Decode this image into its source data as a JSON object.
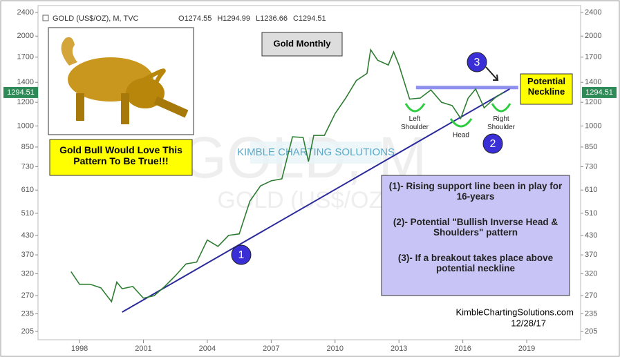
{
  "chart_data": {
    "type": "line",
    "header": {
      "symbol": "GOLD (US$/OZ), M, TVC",
      "ohlc": [
        {
          "label": "O",
          "value": 1274.55
        },
        {
          "label": "H",
          "value": 1294.99
        },
        {
          "label": "L",
          "value": 1236.66
        },
        {
          "label": "C",
          "value": 1294.51
        }
      ]
    },
    "title": "Gold Monthly",
    "watermark": "GOLD, M",
    "watermark_sub": "GOLD (US$/OZ)",
    "logo": "KIMBLE CHARTING SOLUTIONS",
    "callout": "Gold Bull Would Love This Pattern To Be True!!!",
    "neckline_label": "Potential Neckline",
    "pattern_labels": [
      "Left Shoulder",
      "Head",
      "Right Shoulder"
    ],
    "markers": [
      "1",
      "2",
      "3"
    ],
    "notes": [
      "(1)- Rising support line been in play for 16-years",
      "(2)- Potential \"Bullish Inverse Head & Shoulders\" pattern",
      "(3)- If a breakout takes place above potential neckline"
    ],
    "source": "KimbleChartingSolutions.com",
    "date": "12/28/17",
    "last_price": 1294.51,
    "log_scale": true,
    "x": [
      1997.6,
      1998.0,
      1998.5,
      1999.0,
      1999.5,
      1999.75,
      2000.0,
      2000.5,
      2001.0,
      2001.5,
      2002.0,
      2002.5,
      2003.0,
      2003.5,
      2004.0,
      2004.5,
      2005.0,
      2005.5,
      2006.0,
      2006.5,
      2007.0,
      2007.5,
      2008.0,
      2008.5,
      2008.75,
      2009.0,
      2009.5,
      2010.0,
      2010.5,
      2011.0,
      2011.5,
      2011.67,
      2012.0,
      2012.5,
      2012.75,
      2013.0,
      2013.5,
      2014.0,
      2014.5,
      2015.0,
      2015.5,
      2015.9,
      2016.25,
      2016.6,
      2017.0,
      2017.5,
      2017.9
    ],
    "series": [
      {
        "name": "GOLD",
        "color": "#2e7d32",
        "values": [
          325,
          295,
          295,
          287,
          258,
          300,
          285,
          290,
          265,
          270,
          290,
          315,
          345,
          350,
          415,
          395,
          430,
          435,
          560,
          630,
          655,
          665,
          920,
          915,
          760,
          930,
          930,
          1100,
          1240,
          1420,
          1500,
          1800,
          1660,
          1600,
          1770,
          1600,
          1230,
          1240,
          1320,
          1200,
          1170,
          1060,
          1240,
          1330,
          1150,
          1240,
          1294.51
        ]
      }
    ],
    "support_line": {
      "x": [
        2000.0,
        2018.2
      ],
      "y": [
        238,
        1330
      ],
      "color": "#2a2a9a"
    },
    "neckline": {
      "x": [
        2013.8,
        2018.6
      ],
      "y": [
        1345,
        1345
      ],
      "color": "#8f8ff0"
    },
    "xlim": [
      1996.05,
      2021.53
    ],
    "xticks": [
      1998,
      2001,
      2004,
      2007,
      2010,
      2013,
      2016,
      2019
    ],
    "ylim": [
      205,
      2400
    ],
    "yticks": [
      205,
      235,
      270,
      320,
      370,
      430,
      510,
      610,
      730,
      850,
      1000,
      1200,
      1400,
      1700,
      2000,
      2400
    ]
  }
}
